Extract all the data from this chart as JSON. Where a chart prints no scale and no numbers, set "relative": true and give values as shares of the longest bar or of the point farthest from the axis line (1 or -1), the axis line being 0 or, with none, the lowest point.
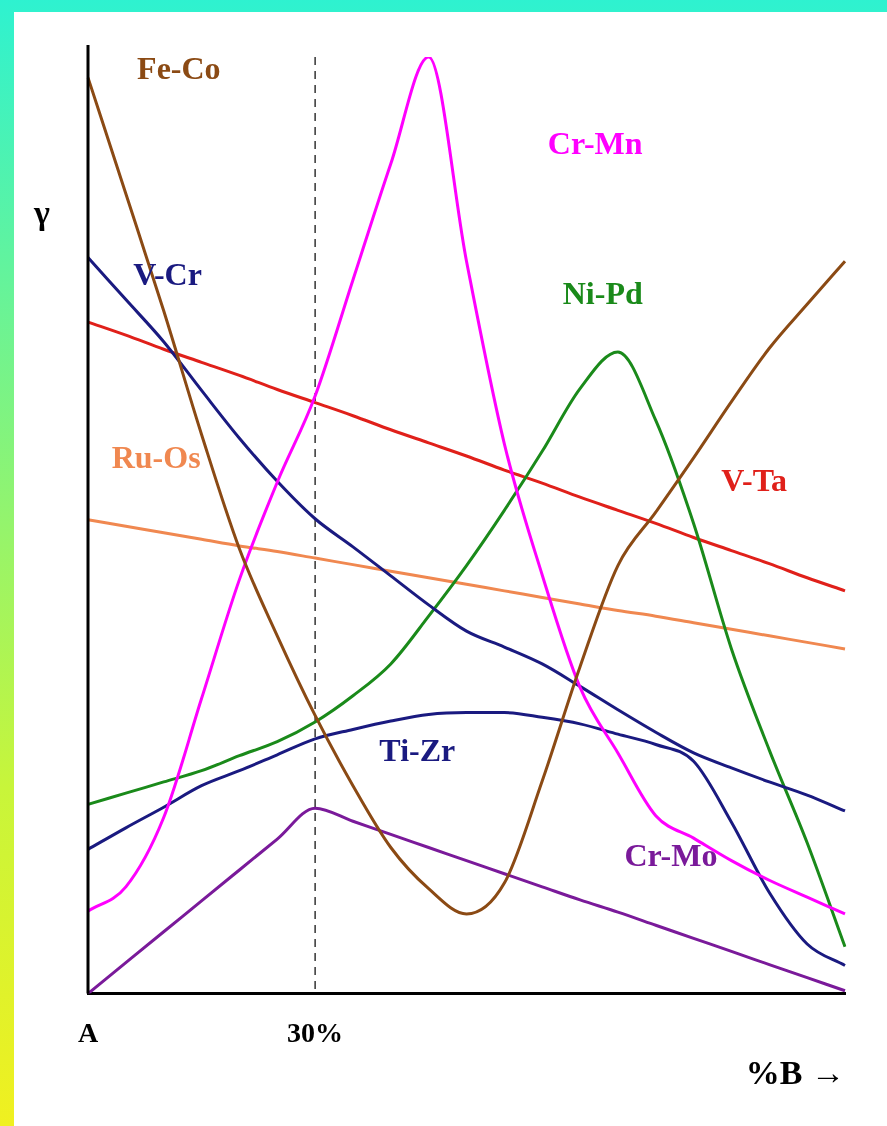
{
  "chart_data": {
    "type": "line",
    "ylabel": "γ",
    "xlabel": "%B →",
    "relative": true,
    "categories": [
      "A",
      null,
      null,
      null,
      null,
      null,
      "30%",
      null,
      null,
      null,
      null,
      null,
      null,
      null,
      null,
      null,
      null,
      null,
      null,
      null,
      null
    ],
    "grid": false,
    "legend": false,
    "marker": "none",
    "line_style": "solid",
    "ref_lines": [
      {
        "axis": "x",
        "value": "30%",
        "color": "#000000",
        "line_style": "dashed"
      }
    ],
    "series": [
      {
        "name": "Fe-Co",
        "color": "#8b4a14",
        "values": [
          0.978,
          0.854,
          0.729,
          0.597,
          0.475,
          0.382,
          0.297,
          0.222,
          0.156,
          0.112,
          0.085,
          0.118,
          0.227,
          0.349,
          0.457,
          0.514,
          0.572,
          0.632,
          0.689,
          0.736,
          0.782
        ]
      },
      {
        "name": "Cr-Mn",
        "color": "#ff00ff",
        "values": [
          0.088,
          0.114,
          0.188,
          0.315,
          0.442,
          0.546,
          0.638,
          0.762,
          0.886,
          1,
          0.782,
          0.587,
          0.447,
          0.327,
          0.257,
          0.19,
          0.166,
          0.142,
          0.121,
          0.103,
          0.085
        ]
      },
      {
        "name": "V-Cr",
        "color": "#1a1a80",
        "values": [
          0.786,
          0.741,
          0.696,
          0.644,
          0.593,
          0.547,
          0.507,
          0.477,
          0.446,
          0.415,
          0.387,
          0.37,
          0.352,
          0.328,
          0.303,
          0.279,
          0.257,
          0.241,
          0.226,
          0.212,
          0.195
        ]
      },
      {
        "name": "Ni-Pd",
        "color": "#1a8a1a",
        "values": [
          0.202,
          0.214,
          0.226,
          0.238,
          0.254,
          0.269,
          0.29,
          0.318,
          0.352,
          0.403,
          0.457,
          0.516,
          0.579,
          0.646,
          0.685,
          0.612,
          0.502,
          0.368,
          0.26,
          0.161,
          0.05
        ]
      },
      {
        "name": "Ru-Os",
        "color": "#f08850",
        "values": [
          0.506,
          0.499,
          0.492,
          0.485,
          0.478,
          0.472,
          0.465,
          0.458,
          0.451,
          0.444,
          0.437,
          0.43,
          0.423,
          0.416,
          0.409,
          0.403,
          0.396,
          0.389,
          0.382,
          0.375,
          0.368
        ]
      },
      {
        "name": "V-Ta",
        "color": "#e0201a",
        "values": [
          0.717,
          0.703,
          0.688,
          0.674,
          0.66,
          0.645,
          0.631,
          0.617,
          0.602,
          0.588,
          0.574,
          0.559,
          0.545,
          0.53,
          0.516,
          0.502,
          0.487,
          0.473,
          0.459,
          0.444,
          0.43
        ]
      },
      {
        "name": "Ti-Zr",
        "color": "#1a1a80",
        "values": [
          0.154,
          0.177,
          0.199,
          0.222,
          0.238,
          0.255,
          0.272,
          0.282,
          0.291,
          0.298,
          0.3,
          0.3,
          0.295,
          0.288,
          0.277,
          0.266,
          0.248,
          0.183,
          0.108,
          0.053,
          0.03
        ]
      },
      {
        "name": "Cr-Mo",
        "color": "#7a1a9a",
        "values": [
          0,
          0.033,
          0.066,
          0.099,
          0.132,
          0.165,
          0.198,
          0.184,
          0.17,
          0.156,
          0.142,
          0.128,
          0.114,
          0.1,
          0.087,
          0.073,
          0.059,
          0.045,
          0.031,
          0.017,
          0.003
        ]
      }
    ]
  }
}
